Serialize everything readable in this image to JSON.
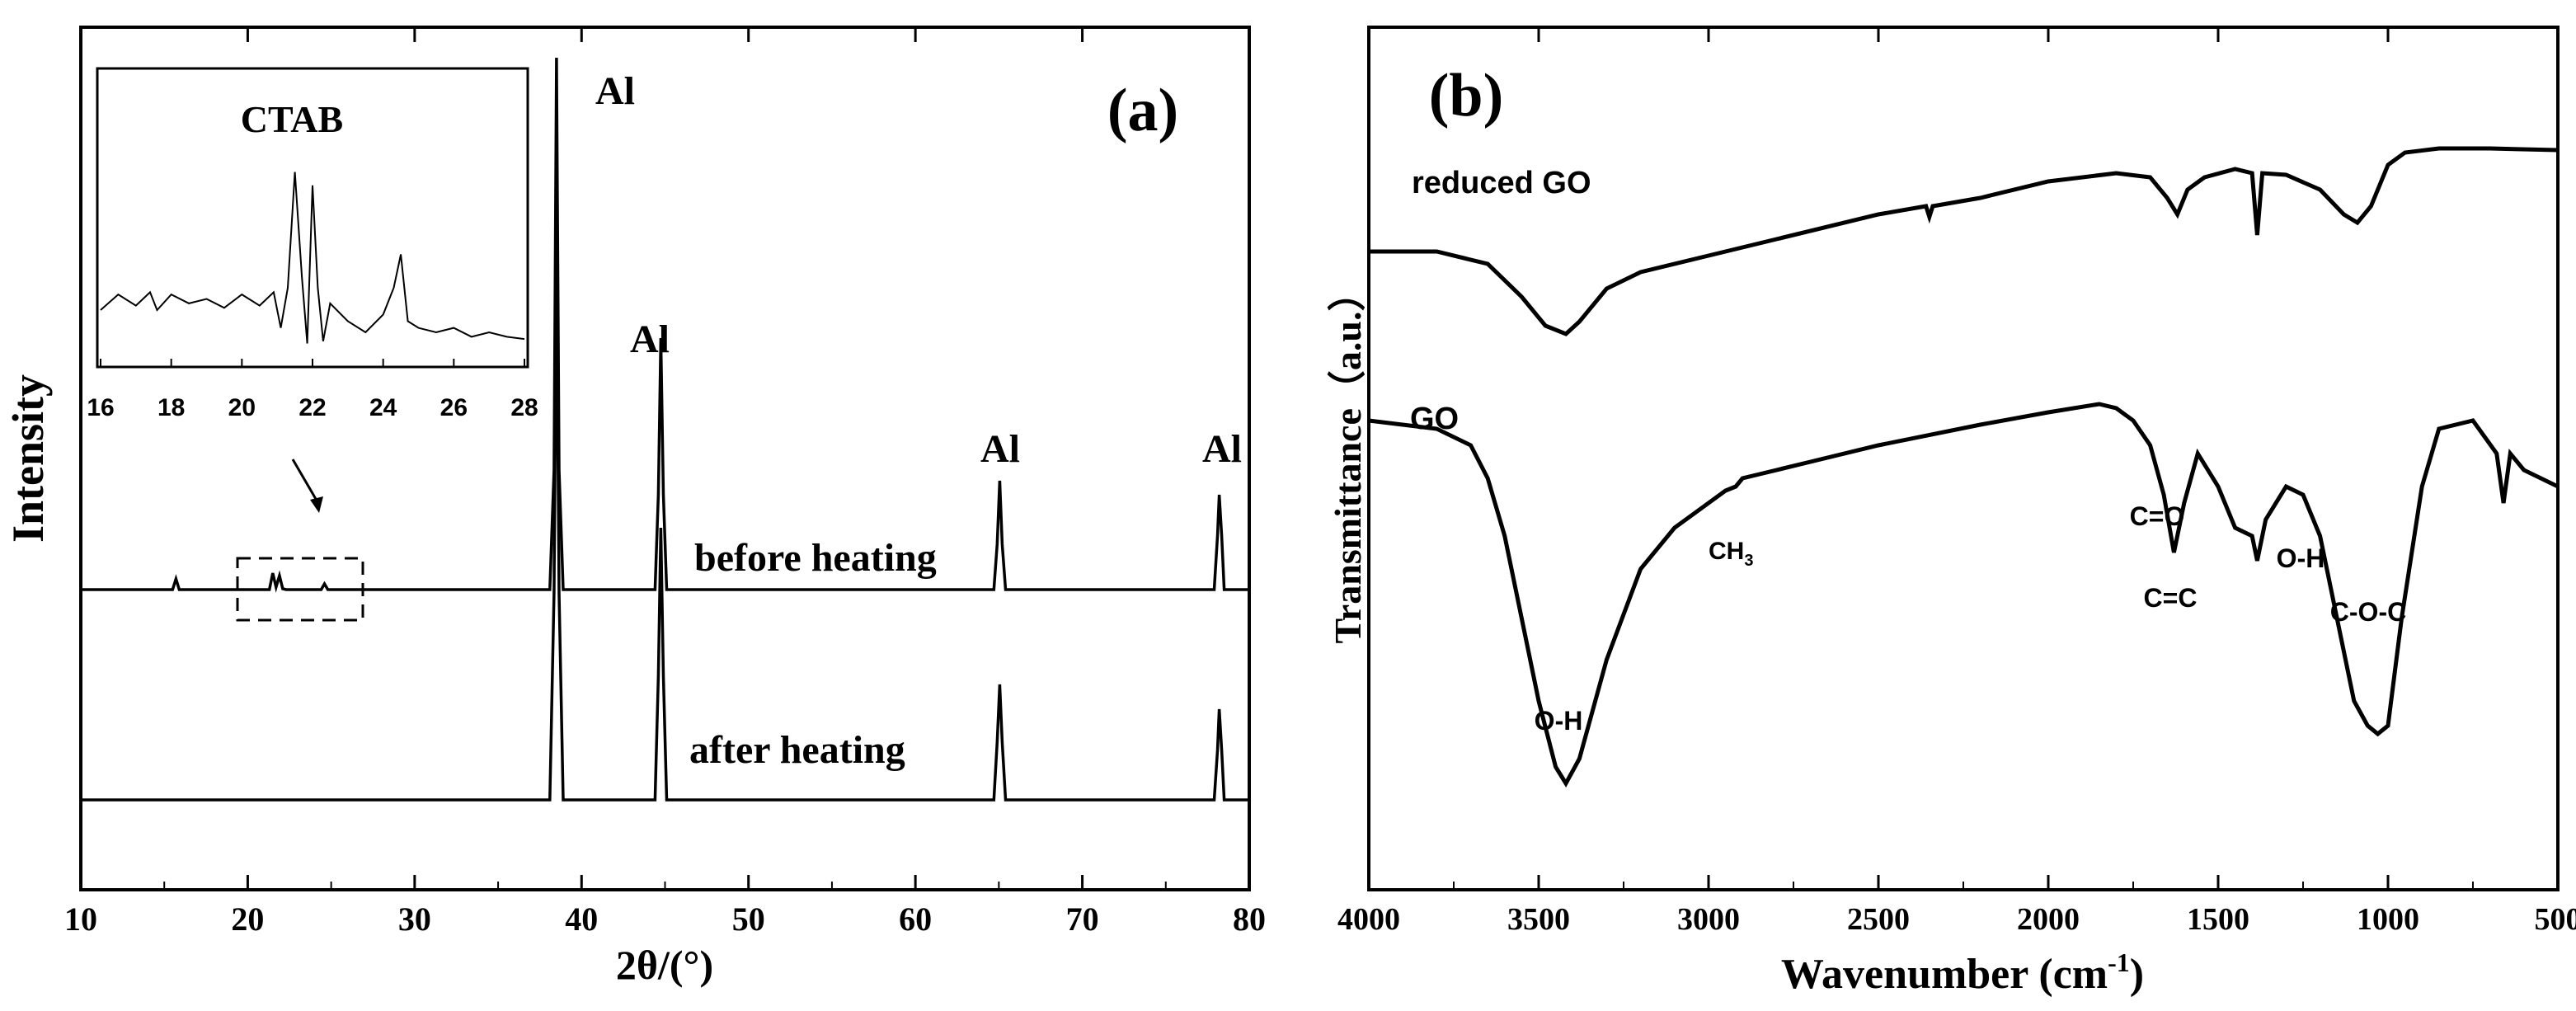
{
  "chart_data": [
    {
      "type": "line",
      "panel": "(a)",
      "title": "",
      "xlabel": "2θ/(°)",
      "ylabel": "Intensity",
      "xlim": [
        10,
        80
      ],
      "ylim": [
        0,
        1
      ],
      "xticks": [
        "10",
        "20",
        "30",
        "40",
        "50",
        "60",
        "70",
        "80"
      ],
      "grid": false,
      "series": [
        {
          "name": "before heating",
          "x": [
            10,
            15.5,
            15.7,
            15.9,
            21.3,
            21.5,
            21.7,
            21.9,
            22.1,
            22.3,
            24.4,
            24.6,
            24.8,
            28,
            38.1,
            38.35,
            38.5,
            38.65,
            38.9,
            44.4,
            44.6,
            44.75,
            44.9,
            45.1,
            64.7,
            64.9,
            65.05,
            65.2,
            65.4,
            77.9,
            78.1,
            78.2,
            78.35,
            78.5,
            80
          ],
          "values": [
            0.305,
            0.305,
            0.318,
            0.305,
            0.305,
            0.325,
            0.308,
            0.322,
            0.306,
            0.305,
            0.305,
            0.312,
            0.305,
            0.305,
            0.305,
            0.45,
            0.95,
            0.45,
            0.305,
            0.305,
            0.42,
            0.61,
            0.42,
            0.305,
            0.305,
            0.36,
            0.437,
            0.36,
            0.305,
            0.305,
            0.37,
            0.42,
            0.37,
            0.305,
            0.305
          ]
        },
        {
          "name": "after heating",
          "x": [
            10,
            38.1,
            38.35,
            38.5,
            38.65,
            38.9,
            44.4,
            44.6,
            44.75,
            44.9,
            45.1,
            64.7,
            64.9,
            65.05,
            65.2,
            65.4,
            77.9,
            78.1,
            78.2,
            78.35,
            78.5,
            80
          ],
          "values": [
            0.05,
            0.05,
            0.3,
            0.7,
            0.3,
            0.05,
            0.05,
            0.2,
            0.38,
            0.2,
            0.05,
            0.05,
            0.12,
            0.19,
            0.12,
            0.05,
            0.05,
            0.11,
            0.16,
            0.11,
            0.05,
            0.05
          ]
        }
      ],
      "annotations": [
        "Al",
        "Al",
        "Al",
        "Al",
        "before heating",
        "after heating"
      ],
      "inset": {
        "title": "CTAB",
        "xlim": [
          16,
          28
        ],
        "xticks": [
          "16",
          "18",
          "20",
          "22",
          "24",
          "26",
          "28"
        ],
        "x": [
          16,
          16.5,
          17,
          17.4,
          17.6,
          18,
          18.5,
          19,
          19.5,
          20,
          20.5,
          20.9,
          21.1,
          21.3,
          21.5,
          21.7,
          21.85,
          22.0,
          22.15,
          22.3,
          22.5,
          23,
          23.5,
          24,
          24.3,
          24.5,
          24.7,
          25,
          25.5,
          26,
          26.5,
          27,
          27.5,
          28
        ],
        "values": [
          0.2,
          0.27,
          0.22,
          0.28,
          0.2,
          0.27,
          0.23,
          0.25,
          0.21,
          0.27,
          0.22,
          0.28,
          0.12,
          0.3,
          0.82,
          0.35,
          0.05,
          0.76,
          0.3,
          0.06,
          0.23,
          0.15,
          0.1,
          0.18,
          0.3,
          0.45,
          0.15,
          0.12,
          0.1,
          0.12,
          0.08,
          0.1,
          0.08,
          0.07
        ]
      }
    },
    {
      "type": "line",
      "panel": "(b)",
      "title": "",
      "xlabel": "Wavenumber (cm",
      "xlabel_sup": "-1",
      "xlabel_end": ")",
      "ylabel": "Transmittance（a.u.）",
      "xlim": [
        4000,
        500
      ],
      "ylim": [
        0,
        1
      ],
      "xticks": [
        "4000",
        "3500",
        "3000",
        "2500",
        "2000",
        "1500",
        "1000",
        "500"
      ],
      "grid": false,
      "series": [
        {
          "name": "reduced GO",
          "x": [
            4000,
            3800,
            3650,
            3550,
            3480,
            3420,
            3380,
            3300,
            3200,
            3000,
            2800,
            2500,
            2360,
            2350,
            2340,
            2200,
            2000,
            1800,
            1700,
            1650,
            1620,
            1590,
            1540,
            1450,
            1400,
            1385,
            1370,
            1300,
            1200,
            1130,
            1090,
            1050,
            1000,
            950,
            850,
            700,
            500
          ],
          "values": [
            0.745,
            0.745,
            0.73,
            0.69,
            0.655,
            0.645,
            0.66,
            0.7,
            0.72,
            0.74,
            0.76,
            0.79,
            0.8,
            0.787,
            0.8,
            0.81,
            0.83,
            0.84,
            0.835,
            0.81,
            0.79,
            0.82,
            0.835,
            0.845,
            0.84,
            0.765,
            0.84,
            0.838,
            0.82,
            0.79,
            0.78,
            0.8,
            0.85,
            0.865,
            0.87,
            0.87,
            0.868
          ]
        },
        {
          "name": "GO",
          "x": [
            4000,
            3800,
            3700,
            3650,
            3600,
            3550,
            3500,
            3450,
            3420,
            3380,
            3300,
            3200,
            3100,
            3000,
            2950,
            2920,
            2900,
            2850,
            2700,
            2500,
            2200,
            2000,
            1850,
            1800,
            1750,
            1700,
            1660,
            1630,
            1600,
            1560,
            1500,
            1450,
            1400,
            1385,
            1360,
            1300,
            1250,
            1200,
            1150,
            1100,
            1060,
            1030,
            1000,
            960,
            900,
            850,
            750,
            680,
            660,
            640,
            600,
            500
          ],
          "values": [
            0.54,
            0.53,
            0.51,
            0.47,
            0.4,
            0.3,
            0.2,
            0.12,
            0.1,
            0.13,
            0.25,
            0.36,
            0.41,
            0.44,
            0.455,
            0.46,
            0.47,
            0.475,
            0.49,
            0.51,
            0.535,
            0.55,
            0.56,
            0.555,
            0.54,
            0.51,
            0.45,
            0.38,
            0.44,
            0.5,
            0.46,
            0.41,
            0.4,
            0.37,
            0.42,
            0.46,
            0.45,
            0.4,
            0.3,
            0.2,
            0.17,
            0.16,
            0.17,
            0.3,
            0.46,
            0.53,
            0.54,
            0.5,
            0.44,
            0.5,
            0.48,
            0.46
          ]
        }
      ],
      "annotations": [
        "(b)",
        "reduced GO",
        "GO",
        "O-H",
        "CH",
        "3",
        "C=O",
        "C=C",
        "O-H",
        "C-O-C"
      ]
    }
  ]
}
